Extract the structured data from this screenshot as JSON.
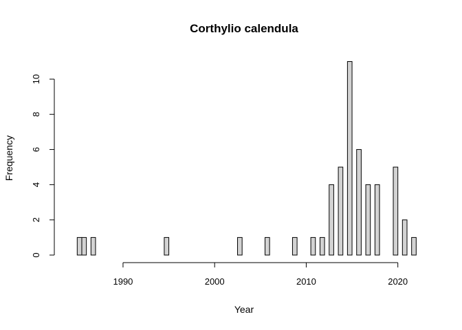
{
  "chart_data": {
    "type": "bar",
    "title": "Corthylio calendula",
    "xlabel": "Year",
    "ylabel": "Frequency",
    "x_ticks": [
      1990,
      2000,
      2010,
      2020
    ],
    "y_ticks": [
      0,
      2,
      4,
      6,
      8,
      10
    ],
    "xlim": [
      1984,
      2022.5
    ],
    "ylim": [
      0,
      11
    ],
    "grid": false,
    "bar_color": "#d3d3d3",
    "bar_width": 0.5,
    "series": [
      {
        "x": [
          1985,
          1985.5,
          1986,
          1986.5,
          1987,
          1987.5,
          1988,
          1988.5,
          1989,
          1989.5,
          1990,
          1990.5,
          1991,
          1991.5,
          1992,
          1992.5,
          1993,
          1993.5,
          1994,
          1994.5,
          1995,
          1995.5,
          1996,
          1996.5,
          1997,
          1997.5,
          1998,
          1998.5,
          1999,
          1999.5,
          2000,
          2000.5,
          2001,
          2001.5,
          2002,
          2002.5,
          2003,
          2003.5,
          2004,
          2004.5,
          2005,
          2005.5,
          2006,
          2006.5,
          2007,
          2007.5,
          2008,
          2008.5,
          2009,
          2009.5,
          2010,
          2010.5,
          2011,
          2011.5,
          2012,
          2012.5,
          2013,
          2013.5,
          2014,
          2014.5,
          2015,
          2015.5,
          2016,
          2016.5,
          2017,
          2017.5,
          2018,
          2018.5,
          2019,
          2019.5,
          2020,
          2020.5,
          2021,
          2021.5
        ],
        "values": [
          1,
          1,
          0,
          1,
          0,
          0,
          0,
          0,
          0,
          0,
          0,
          0,
          0,
          0,
          0,
          0,
          0,
          0,
          0,
          1,
          0,
          0,
          0,
          0,
          0,
          0,
          0,
          0,
          0,
          0,
          0,
          0,
          0,
          0,
          0,
          1,
          0,
          0,
          0,
          0,
          0,
          1,
          0,
          0,
          0,
          0,
          0,
          1,
          0,
          0,
          0,
          1,
          0,
          1,
          0,
          4,
          0,
          5,
          0,
          11,
          0,
          6,
          0,
          4,
          0,
          4,
          0,
          0,
          0,
          5,
          0,
          2,
          0,
          1
        ]
      }
    ]
  }
}
